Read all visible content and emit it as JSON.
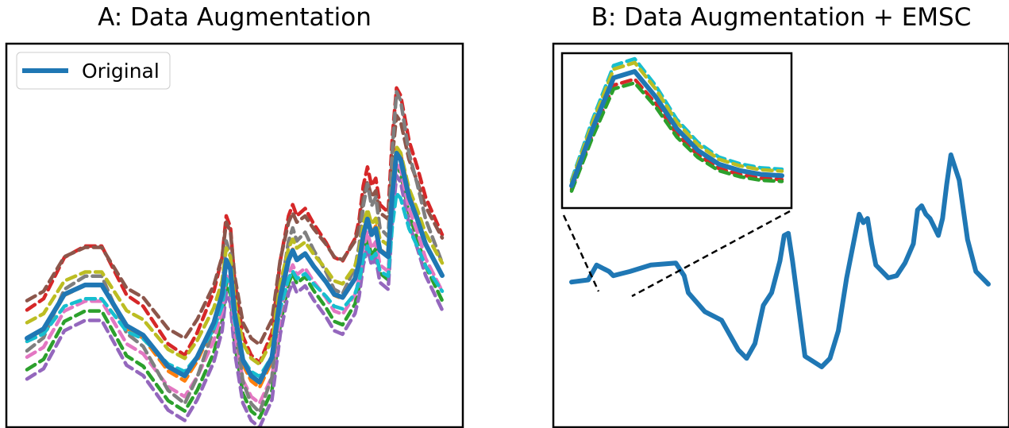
{
  "panel_a": {
    "title": "A: Data Augmentation",
    "legend_label": "Original",
    "original_color": "#1f77b4",
    "augmented_colors": [
      "#ff7f0e",
      "#2ca02c",
      "#d62728",
      "#9467bd",
      "#8c564b",
      "#e377c2",
      "#7f7f7f",
      "#bcbd22",
      "#17becf"
    ]
  },
  "panel_b": {
    "title": "B: Data Augmentation + EMSC",
    "inset": "zoomed view of the first peak",
    "inset_colors": [
      "#17becf",
      "#bcbd22",
      "#1f77b4",
      "#d62728",
      "#2ca02c"
    ]
  },
  "chart_data": [
    {
      "type": "line",
      "title": "A: Data Augmentation",
      "xlabel": "",
      "ylabel": "",
      "axis_ticks": "none",
      "legend": {
        "placement": "top-left",
        "entries": [
          "Original"
        ]
      },
      "x": [
        0,
        0.04,
        0.09,
        0.14,
        0.18,
        0.24,
        0.28,
        0.31,
        0.34,
        0.38,
        0.41,
        0.45,
        0.47,
        0.48,
        0.49,
        0.5,
        0.52,
        0.54,
        0.56,
        0.59,
        0.61,
        0.63,
        0.64,
        0.65,
        0.67,
        0.69,
        0.72,
        0.74,
        0.76,
        0.79,
        0.8,
        0.81,
        0.82,
        0.83,
        0.84,
        0.85,
        0.87,
        0.88,
        0.89,
        0.9,
        0.92,
        0.94,
        0.96,
        1.0
      ],
      "series": [
        {
          "name": "Original",
          "values": [
            0.2,
            0.23,
            0.34,
            0.37,
            0.37,
            0.24,
            0.21,
            0.16,
            0.11,
            0.08,
            0.14,
            0.25,
            0.34,
            0.45,
            0.42,
            0.28,
            0.13,
            0.08,
            0.06,
            0.14,
            0.33,
            0.45,
            0.48,
            0.45,
            0.47,
            0.43,
            0.38,
            0.34,
            0.33,
            0.39,
            0.44,
            0.53,
            0.58,
            0.53,
            0.55,
            0.48,
            0.46,
            0.66,
            0.79,
            0.77,
            0.65,
            0.58,
            0.5,
            0.4
          ]
        }
      ],
      "augmented_series": {
        "count": 9,
        "style": "dashed",
        "shape": "same as Original with multiplicative and additive variation"
      }
    },
    {
      "type": "line",
      "title": "B: Data Augmentation + EMSC",
      "xlabel": "",
      "ylabel": "",
      "axis_ticks": "none",
      "x": [
        0,
        0.04,
        0.06,
        0.09,
        0.1,
        0.12,
        0.14,
        0.19,
        0.25,
        0.27,
        0.28,
        0.32,
        0.36,
        0.4,
        0.42,
        0.44,
        0.46,
        0.48,
        0.5,
        0.51,
        0.52,
        0.53,
        0.56,
        0.6,
        0.62,
        0.64,
        0.66,
        0.68,
        0.69,
        0.7,
        0.71,
        0.72,
        0.73,
        0.76,
        0.78,
        0.8,
        0.82,
        0.83,
        0.84,
        0.85,
        0.86,
        0.88,
        0.89,
        0.9,
        0.91,
        0.93,
        0.95,
        0.97,
        1.0
      ],
      "series": [
        {
          "name": "",
          "values": [
            0.4,
            0.41,
            0.48,
            0.45,
            0.43,
            0.44,
            0.45,
            0.48,
            0.49,
            0.43,
            0.35,
            0.26,
            0.22,
            0.08,
            0.04,
            0.11,
            0.29,
            0.35,
            0.5,
            0.62,
            0.63,
            0.5,
            0.05,
            0.0,
            0.04,
            0.17,
            0.42,
            0.62,
            0.72,
            0.68,
            0.7,
            0.58,
            0.48,
            0.42,
            0.43,
            0.49,
            0.58,
            0.74,
            0.76,
            0.72,
            0.7,
            0.62,
            0.7,
            0.86,
            1.0,
            0.88,
            0.6,
            0.45,
            0.39
          ]
        }
      ],
      "inset": {
        "type": "line",
        "series_count": 5,
        "style": "dashed around solid",
        "shape": "single peak",
        "x": [
          0,
          0.1,
          0.2,
          0.3,
          0.4,
          0.5,
          0.6,
          0.7,
          0.8,
          0.9,
          1.0
        ],
        "values": [
          0.1,
          0.55,
          0.95,
          1.0,
          0.8,
          0.55,
          0.38,
          0.27,
          0.22,
          0.19,
          0.18
        ]
      }
    }
  ]
}
